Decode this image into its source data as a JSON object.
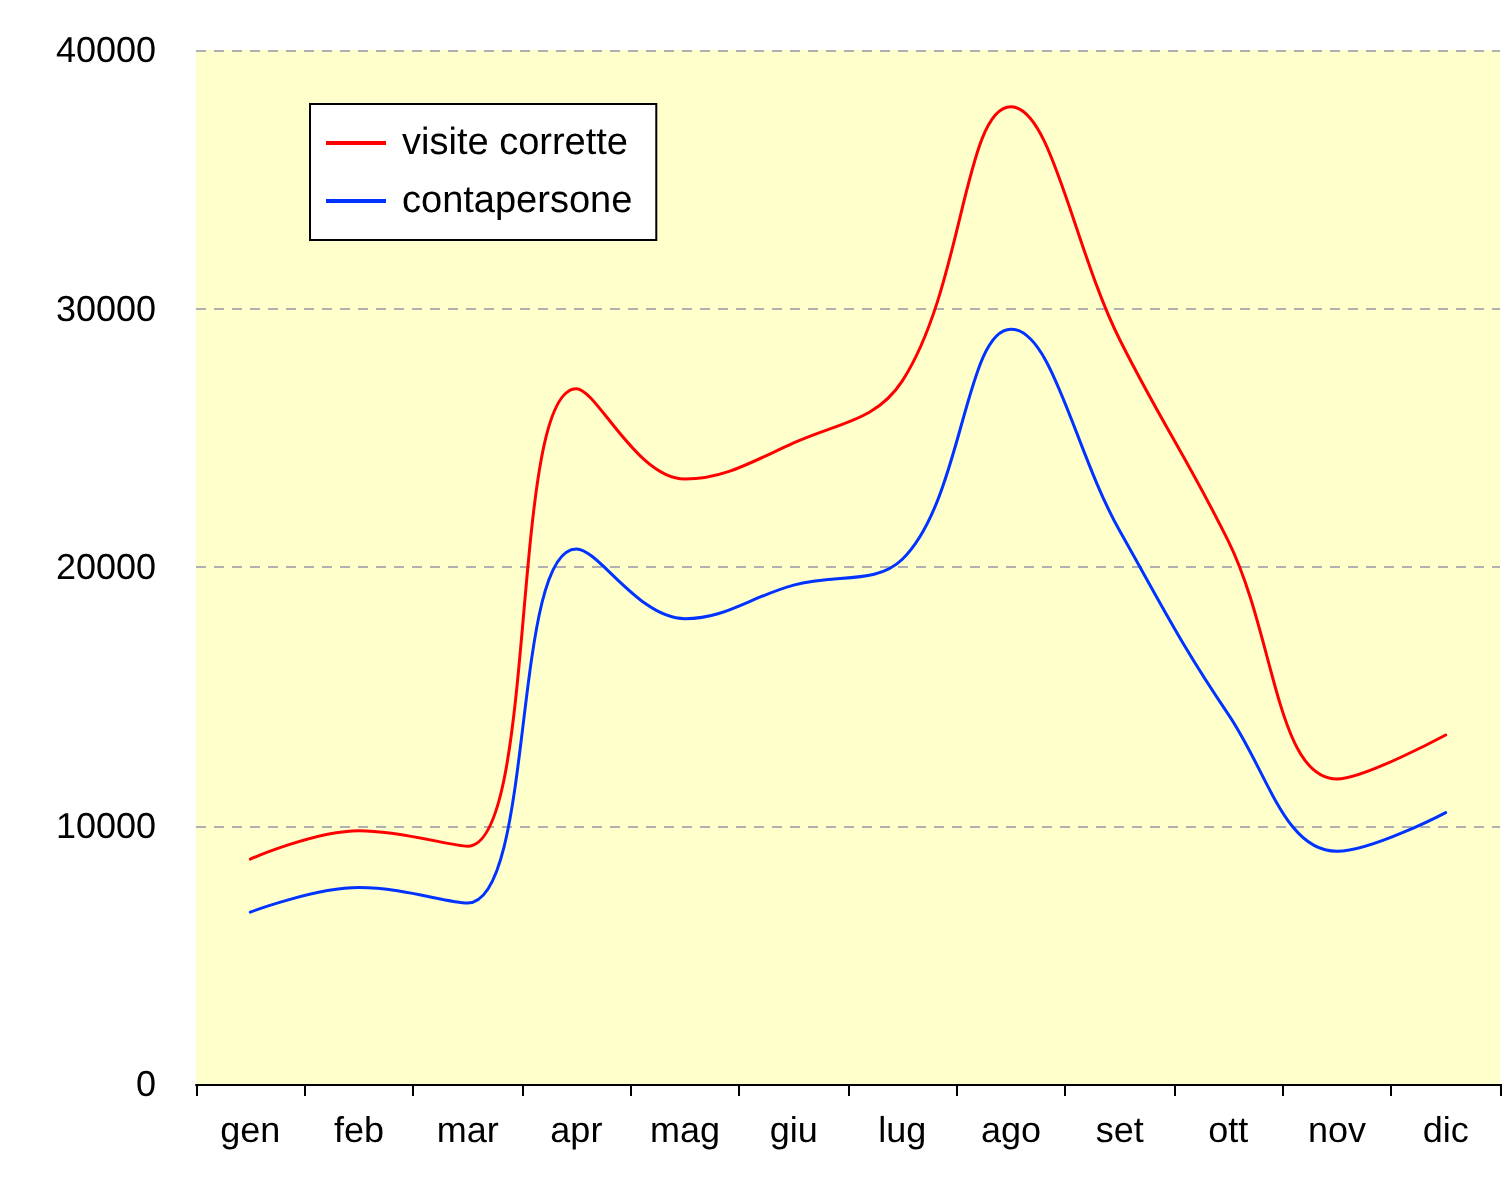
{
  "chart_data": {
    "type": "line",
    "categories": [
      "gen",
      "feb",
      "mar",
      "apr",
      "mag",
      "giu",
      "lug",
      "ago",
      "set",
      "ott",
      "nov",
      "dic"
    ],
    "series": [
      {
        "name": "visite corrette",
        "color": "#ff0000",
        "values": [
          8700,
          9800,
          9200,
          26900,
          23400,
          24800,
          27200,
          37800,
          28800,
          21000,
          11800,
          13500
        ]
      },
      {
        "name": "contapersone",
        "color": "#0033ff",
        "values": [
          6650,
          7600,
          7000,
          20700,
          18000,
          19300,
          20300,
          29200,
          21400,
          14300,
          9000,
          10500
        ]
      }
    ],
    "ylim": [
      0,
      40000
    ],
    "yticks": [
      0,
      10000,
      20000,
      30000,
      40000
    ],
    "grid": "y",
    "legend": "top left",
    "marker": "none",
    "line_style": "solid"
  }
}
